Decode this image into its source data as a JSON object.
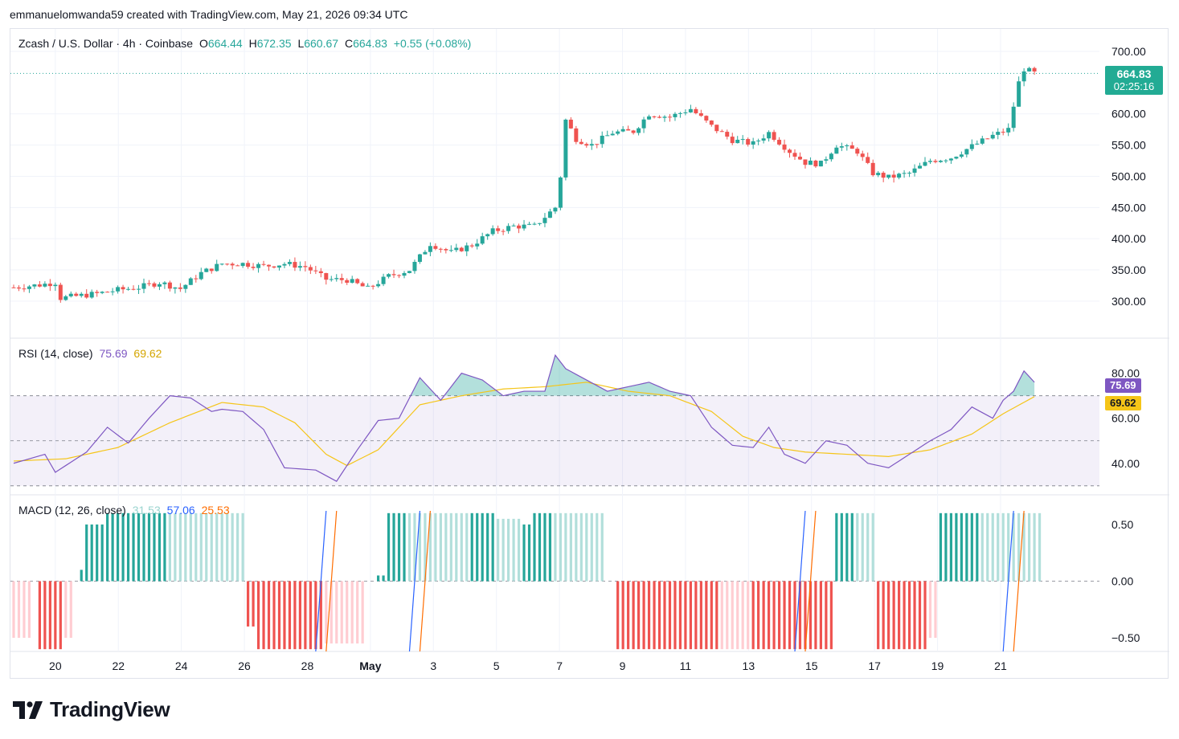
{
  "credit": "emmanuelomwanda59 created with TradingView.com, May 21, 2026 09:34 UTC",
  "brand": "TradingView",
  "colors": {
    "up": "#26a69a",
    "down": "#ef5350",
    "rsi": "#7e57c2",
    "rsi_ma": "#f5c518",
    "macd": "#2962ff",
    "signal": "#ff6d00",
    "grid": "#f0f3fa"
  },
  "legend": {
    "symbol": "Zcash / U.S. Dollar · 4h · Coinbase",
    "o_label": "O",
    "o": "664.44",
    "h_label": "H",
    "h": "672.35",
    "l_label": "L",
    "l": "660.67",
    "c_label": "C",
    "c": "664.83",
    "change": "+0.55 (+0.08%)"
  },
  "price_badge": {
    "value": "664.83",
    "countdown": "02:25:16"
  },
  "rsi_legend": {
    "label": "RSI (14, close)",
    "rsi": "75.69",
    "ma": "69.62"
  },
  "macd_legend": {
    "label": "MACD (12, 26, close)",
    "hist": "31.53",
    "macd": "57.06",
    "signal": "25.53"
  },
  "chart_data": [
    {
      "type": "candlestick",
      "title": "Zcash / U.S. Dollar · 4h · Coinbase",
      "x_ticks": [
        "20",
        "22",
        "24",
        "26",
        "28",
        "May",
        "3",
        "5",
        "7",
        "9",
        "11",
        "13",
        "15",
        "17",
        "19",
        "21"
      ],
      "y_ticks": [
        "700.00",
        "600.00",
        "550.00",
        "500.00",
        "450.00",
        "400.00",
        "350.00",
        "300.00"
      ],
      "ylim": [
        260,
        700
      ],
      "close_path": [
        [
          0,
          322
        ],
        [
          5,
          326
        ],
        [
          8,
          330
        ],
        [
          9,
          305
        ],
        [
          12,
          308
        ],
        [
          16,
          312
        ],
        [
          20,
          318
        ],
        [
          24,
          322
        ],
        [
          28,
          330
        ],
        [
          32,
          320
        ],
        [
          36,
          345
        ],
        [
          40,
          360
        ],
        [
          44,
          360
        ],
        [
          48,
          356
        ],
        [
          52,
          360
        ],
        [
          56,
          355
        ],
        [
          60,
          335
        ],
        [
          64,
          334
        ],
        [
          68,
          320
        ],
        [
          72,
          340
        ],
        [
          76,
          350
        ],
        [
          80,
          392
        ],
        [
          84,
          378
        ],
        [
          88,
          390
        ],
        [
          92,
          412
        ],
        [
          96,
          420
        ],
        [
          100,
          420
        ],
        [
          104,
          450
        ],
        [
          105,
          500
        ],
        [
          106,
          590
        ],
        [
          108,
          560
        ],
        [
          111,
          550
        ],
        [
          115,
          570
        ],
        [
          119,
          572
        ],
        [
          122,
          600
        ],
        [
          126,
          595
        ],
        [
          130,
          608
        ],
        [
          134,
          580
        ],
        [
          138,
          558
        ],
        [
          142,
          552
        ],
        [
          145,
          570
        ],
        [
          149,
          540
        ],
        [
          152,
          522
        ],
        [
          155,
          520
        ],
        [
          158,
          550
        ],
        [
          162,
          540
        ],
        [
          165,
          505
        ],
        [
          168,
          498
        ],
        [
          172,
          505
        ],
        [
          176,
          525
        ],
        [
          180,
          530
        ],
        [
          184,
          548
        ],
        [
          188,
          565
        ],
        [
          191,
          575
        ],
        [
          193,
          650
        ],
        [
          194,
          672
        ],
        [
          196,
          665
        ]
      ],
      "last_close": 664.83
    },
    {
      "type": "line",
      "title": "RSI (14, close)",
      "y_ticks": [
        "80.00",
        "60.00",
        "40.00"
      ],
      "ylim": [
        26,
        92
      ],
      "bands": [
        70,
        50,
        30
      ],
      "series": [
        {
          "name": "RSI",
          "points": [
            [
              0,
              40
            ],
            [
              6,
              44
            ],
            [
              8,
              36
            ],
            [
              14,
              45
            ],
            [
              18,
              56
            ],
            [
              22,
              49
            ],
            [
              26,
              60
            ],
            [
              30,
              70
            ],
            [
              34,
              69
            ],
            [
              38,
              63
            ],
            [
              40,
              64
            ],
            [
              44,
              63
            ],
            [
              48,
              55
            ],
            [
              52,
              38
            ],
            [
              58,
              37
            ],
            [
              62,
              32
            ],
            [
              66,
              46
            ],
            [
              70,
              59
            ],
            [
              74,
              60
            ],
            [
              78,
              78
            ],
            [
              82,
              68
            ],
            [
              86,
              80
            ],
            [
              90,
              77
            ],
            [
              94,
              70
            ],
            [
              98,
              72
            ],
            [
              102,
              72
            ],
            [
              104,
              88
            ],
            [
              106,
              82
            ],
            [
              110,
              77
            ],
            [
              114,
              72
            ],
            [
              118,
              74
            ],
            [
              122,
              76
            ],
            [
              126,
              72
            ],
            [
              130,
              70
            ],
            [
              134,
              56
            ],
            [
              138,
              48
            ],
            [
              142,
              47
            ],
            [
              145,
              56
            ],
            [
              148,
              44
            ],
            [
              152,
              40
            ],
            [
              156,
              50
            ],
            [
              160,
              48
            ],
            [
              164,
              40
            ],
            [
              168,
              38
            ],
            [
              172,
              44
            ],
            [
              176,
              50
            ],
            [
              180,
              55
            ],
            [
              184,
              65
            ],
            [
              188,
              60
            ],
            [
              190,
              68
            ],
            [
              192,
              72
            ],
            [
              194,
              81
            ],
            [
              196,
              76
            ]
          ]
        },
        {
          "name": "RSI MA",
          "points": [
            [
              0,
              41
            ],
            [
              10,
              42
            ],
            [
              20,
              47
            ],
            [
              30,
              58
            ],
            [
              40,
              67
            ],
            [
              48,
              65
            ],
            [
              54,
              58
            ],
            [
              60,
              44
            ],
            [
              64,
              39
            ],
            [
              70,
              46
            ],
            [
              78,
              66
            ],
            [
              86,
              70
            ],
            [
              94,
              73
            ],
            [
              102,
              74
            ],
            [
              110,
              76
            ],
            [
              118,
              72
            ],
            [
              126,
              70
            ],
            [
              134,
              63
            ],
            [
              140,
              52
            ],
            [
              146,
              47
            ],
            [
              152,
              45
            ],
            [
              160,
              44
            ],
            [
              168,
              43
            ],
            [
              176,
              46
            ],
            [
              184,
              53
            ],
            [
              190,
              62
            ],
            [
              196,
              69.62
            ]
          ]
        }
      ]
    },
    {
      "type": "bar",
      "title": "MACD (12, 26, close)",
      "y_ticks": [
        "0.50",
        "0.00",
        "−0.50"
      ],
      "ylim": [
        -0.62,
        0.62
      ],
      "histogram_blocks": [
        [
          0,
          4,
          -0.5,
          "down_light"
        ],
        [
          5,
          10,
          -0.6,
          "down"
        ],
        [
          10,
          12,
          -0.5,
          "down_light"
        ],
        [
          13,
          14,
          0.1,
          "up"
        ],
        [
          14,
          18,
          0.5,
          "up"
        ],
        [
          18,
          30,
          0.6,
          "up"
        ],
        [
          30,
          45,
          0.6,
          "up_light"
        ],
        [
          45,
          47,
          -0.4,
          "down"
        ],
        [
          47,
          60,
          -0.6,
          "down"
        ],
        [
          60,
          68,
          -0.55,
          "down_light"
        ],
        [
          70,
          72,
          0.05,
          "up"
        ],
        [
          72,
          76,
          0.6,
          "up"
        ],
        [
          76,
          88,
          0.6,
          "up_light"
        ],
        [
          88,
          93,
          0.6,
          "up"
        ],
        [
          93,
          98,
          0.55,
          "up_light"
        ],
        [
          98,
          100,
          0.5,
          "up"
        ],
        [
          100,
          104,
          0.6,
          "up"
        ],
        [
          104,
          114,
          0.6,
          "up_light"
        ],
        [
          116,
          136,
          -0.6,
          "down"
        ],
        [
          136,
          142,
          -0.6,
          "down_light"
        ],
        [
          142,
          158,
          -0.6,
          "down"
        ],
        [
          158,
          162,
          0.6,
          "up"
        ],
        [
          162,
          166,
          0.6,
          "up_light"
        ],
        [
          166,
          176,
          -0.6,
          "down"
        ],
        [
          176,
          178,
          -0.5,
          "down_light"
        ],
        [
          178,
          186,
          0.6,
          "up"
        ],
        [
          186,
          198,
          0.6,
          "up_light"
        ]
      ]
    }
  ]
}
